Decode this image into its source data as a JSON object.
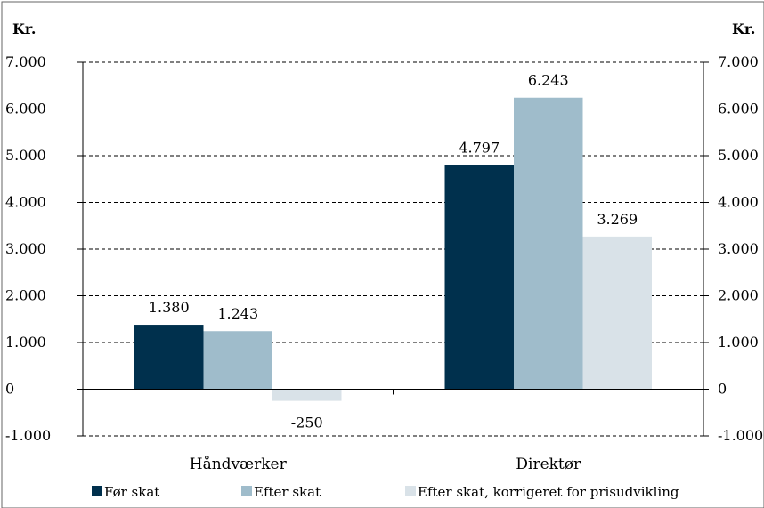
{
  "caption": "",
  "chart_data": {
    "type": "bar",
    "title": "",
    "left_unit_label": "Kr.",
    "right_unit_label": "Kr.",
    "categories": [
      "Håndværker",
      "Direktør"
    ],
    "series": [
      {
        "name": "Før skat",
        "values": [
          1380,
          4797
        ],
        "color": "#00304d"
      },
      {
        "name": "Efter skat",
        "values": [
          1243,
          6243
        ],
        "color": "#9fbccb"
      },
      {
        "name": "Efter skat, korrigeret for prisudvikling",
        "values": [
          -250,
          3269
        ],
        "color": "#d9e2e8"
      }
    ],
    "data_labels": [
      [
        "1.380",
        "4.797"
      ],
      [
        "1.243",
        "6.243"
      ],
      [
        "-250",
        "3.269"
      ]
    ],
    "y_ticks": [
      -1000,
      0,
      1000,
      2000,
      3000,
      4000,
      5000,
      6000,
      7000
    ],
    "y_tick_labels": [
      "-1.000",
      "0",
      "1.000",
      "2.000",
      "3.000",
      "4.000",
      "5.000",
      "6.000",
      "7.000"
    ],
    "ylim": [
      -1000,
      7000
    ],
    "grid": "dashed horizontal",
    "legend_position": "bottom",
    "dual_y_axis": true
  }
}
